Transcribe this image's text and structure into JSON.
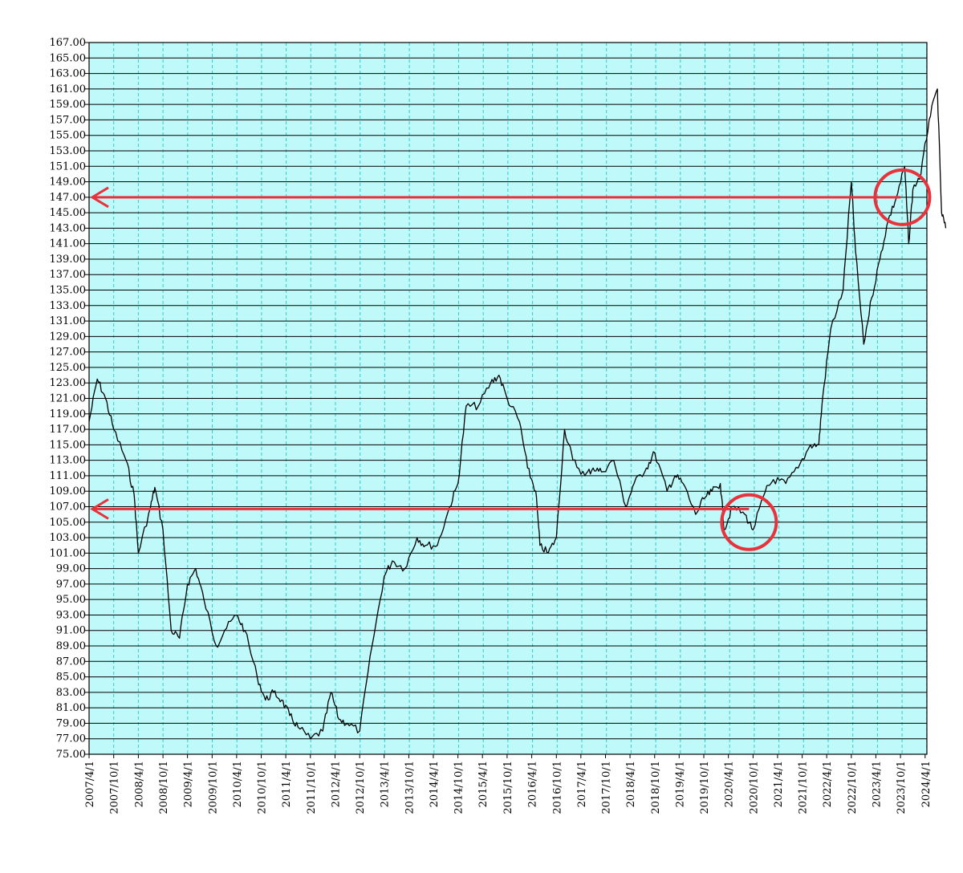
{
  "chart_data": {
    "type": "line",
    "title": "",
    "xlabel": "",
    "ylabel": "",
    "ylim": [
      75.0,
      167.0
    ],
    "grid": true,
    "colors": {
      "plot_background": "#bff9f9",
      "horizontal_grid": "#000000",
      "vertical_grid": "#33cccc",
      "series_line": "#000000",
      "annotation": "#e8323c"
    },
    "y_ticks": [
      "75.00",
      "77.00",
      "79.00",
      "81.00",
      "83.00",
      "85.00",
      "87.00",
      "89.00",
      "91.00",
      "93.00",
      "95.00",
      "97.00",
      "99.00",
      "101.00",
      "103.00",
      "105.00",
      "107.00",
      "109.00",
      "111.00",
      "113.00",
      "115.00",
      "117.00",
      "119.00",
      "121.00",
      "123.00",
      "125.00",
      "127.00",
      "129.00",
      "131.00",
      "133.00",
      "135.00",
      "137.00",
      "139.00",
      "141.00",
      "143.00",
      "145.00",
      "147.00",
      "149.00",
      "151.00",
      "153.00",
      "155.00",
      "157.00",
      "159.00",
      "161.00",
      "163.00",
      "165.00",
      "167.00"
    ],
    "x_ticks": [
      "2007/4/1",
      "2007/10/1",
      "2008/4/1",
      "2008/10/1",
      "2009/4/1",
      "2009/10/1",
      "2010/4/1",
      "2010/10/1",
      "2011/4/1",
      "2011/10/1",
      "2012/4/1",
      "2012/10/1",
      "2013/4/1",
      "2013/10/1",
      "2014/4/1",
      "2014/10/1",
      "2015/4/1",
      "2015/10/1",
      "2016/4/1",
      "2016/10/1",
      "2017/4/1",
      "2017/10/1",
      "2018/4/1",
      "2018/10/1",
      "2019/4/1",
      "2019/10/1",
      "2020/4/1",
      "2020/10/1",
      "2021/4/1",
      "2021/10/1",
      "2022/4/1",
      "2022/10/1",
      "2023/4/1",
      "2023/10/1",
      "2024/4/1"
    ],
    "series": [
      {
        "x": [
          "2007/4/1",
          "2007/6/1",
          "2007/8/1",
          "2007/10/1",
          "2008/1/1",
          "2008/3/1",
          "2008/4/1",
          "2008/7/1",
          "2008/8/1",
          "2008/10/1",
          "2008/12/1",
          "2009/2/1",
          "2009/4/1",
          "2009/6/1",
          "2009/8/1",
          "2009/11/1",
          "2010/1/1",
          "2010/4/1",
          "2010/6/1",
          "2010/9/1",
          "2010/11/1",
          "2011/1/1",
          "2011/3/1",
          "2011/5/1",
          "2011/7/1",
          "2011/10/1",
          "2012/1/1",
          "2012/3/1",
          "2012/5/1",
          "2012/7/1",
          "2012/10/1",
          "2013/1/1",
          "2013/4/1",
          "2013/6/1",
          "2013/9/1",
          "2013/12/1",
          "2014/2/1",
          "2014/5/1",
          "2014/8/1",
          "2014/10/1",
          "2014/12/1",
          "2015/3/1",
          "2015/6/1",
          "2015/8/1",
          "2015/10/1",
          "2016/1/1",
          "2016/3/1",
          "2016/5/1",
          "2016/6/1",
          "2016/8/1",
          "2016/10/1",
          "2016/12/1",
          "2017/2/1",
          "2017/5/1",
          "2017/7/1",
          "2017/9/1",
          "2017/12/1",
          "2018/3/1",
          "2018/5/1",
          "2018/8/1",
          "2018/10/1",
          "2019/1/1",
          "2019/3/1",
          "2019/5/1",
          "2019/8/1",
          "2019/10/1",
          "2019/12/1",
          "2020/2/1",
          "2020/3/1",
          "2020/5/1",
          "2020/8/1",
          "2020/10/1",
          "2021/1/1",
          "2021/3/1",
          "2021/6/1",
          "2021/9/1",
          "2021/12/1",
          "2022/2/1",
          "2022/3/1",
          "2022/5/1",
          "2022/8/1",
          "2022/10/1",
          "2022/11/1",
          "2023/1/1",
          "2023/3/1",
          "2023/5/1",
          "2023/7/1",
          "2023/9/1",
          "2023/11/1",
          "2023/12/1",
          "2024/1/1",
          "2024/3/1",
          "2024/5/1",
          "2024/7/1",
          "2024/8/1",
          "2024/9/1"
        ],
        "values": [
          118,
          123.5,
          121,
          117,
          113,
          108.5,
          101,
          107,
          109.5,
          104,
          91,
          90,
          97,
          99,
          95,
          89,
          91,
          93,
          91,
          85,
          82,
          83,
          82,
          80,
          78.5,
          77,
          78,
          83,
          79.5,
          79,
          78,
          89,
          98,
          100,
          99,
          103,
          102,
          102,
          107,
          110,
          120,
          120,
          123,
          124,
          121,
          118,
          112,
          109,
          102,
          101,
          103,
          117,
          113,
          111,
          112,
          111.5,
          113,
          107,
          110,
          112,
          114,
          109,
          111,
          110,
          106,
          108,
          109,
          110,
          104,
          107,
          106,
          104,
          109,
          110.5,
          110,
          112,
          115,
          115,
          121,
          130,
          135,
          149,
          140,
          128,
          134,
          139,
          144,
          147,
          151,
          141,
          148,
          150,
          157,
          161,
          145,
          143
        ]
      }
    ],
    "annotations": [
      {
        "type": "horizontal-arrow",
        "y": 147.0,
        "from_x": "2023/10/1",
        "to_x": "2007/4/1"
      },
      {
        "type": "horizontal-arrow",
        "y": 106.7,
        "from_x": "2020/9/1",
        "to_x": "2007/4/1"
      },
      {
        "type": "circle",
        "x": "2023/10/15",
        "y": 147.0
      },
      {
        "type": "circle",
        "x": "2020/9/1",
        "y": 105.0
      }
    ]
  }
}
